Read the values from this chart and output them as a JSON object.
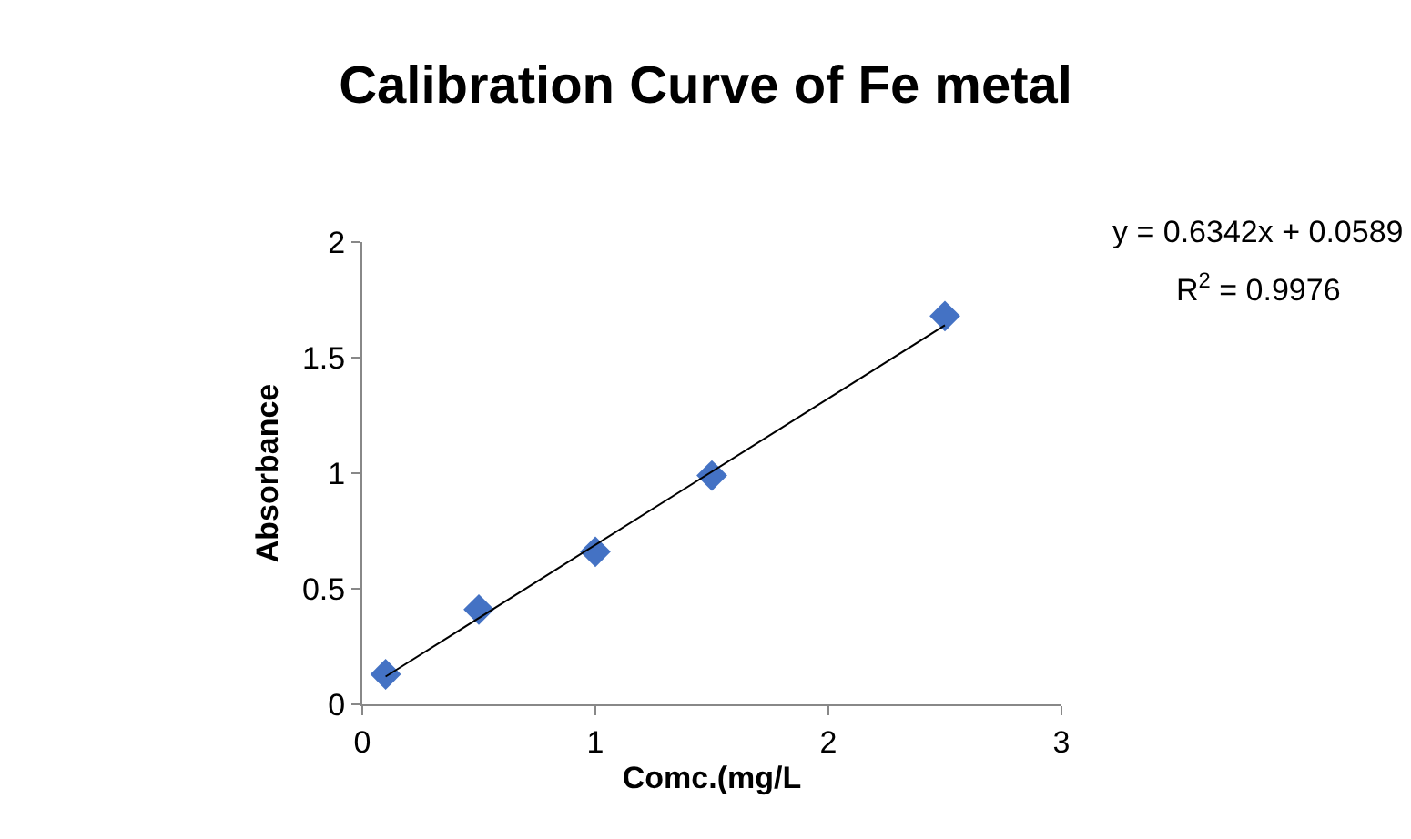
{
  "chart_data": {
    "type": "scatter",
    "title": "Calibration Curve of Fe metal",
    "xlabel": "Comc.(mg/L",
    "ylabel": "Absorbance",
    "series": [
      {
        "color": "#4472c4",
        "marker": "diamond",
        "x": [
          0.1,
          0.5,
          1,
          1.5,
          2.5
        ],
        "values": [
          0.13,
          0.41,
          0.66,
          0.99,
          1.68
        ]
      },
      {
        "type": "line",
        "color": "#000000",
        "marker": "none",
        "line_style": "solid",
        "x": [
          0.1,
          2.5
        ],
        "values": [
          0.12,
          1.64
        ]
      }
    ],
    "annotations": [
      "y = 0.6342x + 0.0589",
      "R$^{2}$ = 0.9976"
    ],
    "xlim": [
      0,
      3
    ],
    "xticks": [
      0,
      1,
      2,
      3
    ],
    "ylim": [
      0,
      2
    ],
    "yticks": [
      0,
      0.5,
      1,
      1.5,
      2
    ]
  }
}
